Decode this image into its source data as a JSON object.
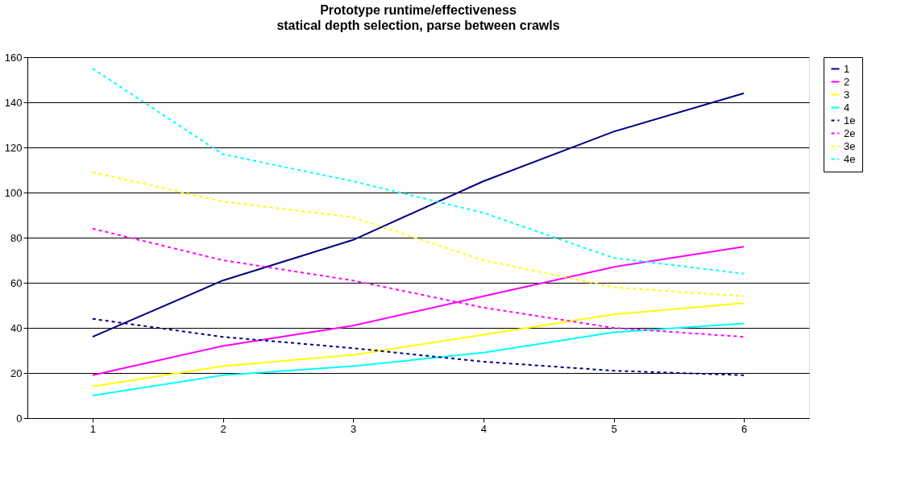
{
  "chart_data": {
    "type": "line",
    "title": "Prototype runtime/effectiveness",
    "subtitle": "statical depth selection, parse between crawls",
    "categories": [
      "1",
      "2",
      "3",
      "4",
      "5",
      "6"
    ],
    "series": [
      {
        "name": "1",
        "color": "#000080",
        "line_style": "solid",
        "values": [
          36,
          61,
          79,
          105,
          127,
          144
        ]
      },
      {
        "name": "2",
        "color": "#ff00ff",
        "line_style": "solid",
        "values": [
          19,
          32,
          41,
          54,
          67,
          76
        ]
      },
      {
        "name": "3",
        "color": "#ffff00",
        "line_style": "solid",
        "values": [
          14,
          23,
          28,
          37,
          46,
          51
        ]
      },
      {
        "name": "4",
        "color": "#00ffff",
        "line_style": "solid",
        "values": [
          10,
          19,
          23,
          29,
          38,
          42
        ]
      },
      {
        "name": "1e",
        "color": "#000080",
        "line_style": "dashed",
        "values": [
          44,
          36,
          31,
          25,
          21,
          19
        ]
      },
      {
        "name": "2e",
        "color": "#ff00ff",
        "line_style": "dashed",
        "values": [
          84,
          70,
          61,
          49,
          40,
          36
        ]
      },
      {
        "name": "3e",
        "color": "#ffff00",
        "line_style": "dashed",
        "values": [
          109,
          96,
          89,
          70,
          58,
          54
        ]
      },
      {
        "name": "4e",
        "color": "#00ffff",
        "line_style": "dashed",
        "values": [
          155,
          117,
          105,
          91,
          71,
          64
        ]
      }
    ],
    "ylim": [
      0,
      160
    ],
    "yticks": [
      0,
      20,
      40,
      60,
      80,
      100,
      120,
      140,
      160
    ],
    "grid": "y",
    "legend": "right",
    "marker": "none"
  }
}
